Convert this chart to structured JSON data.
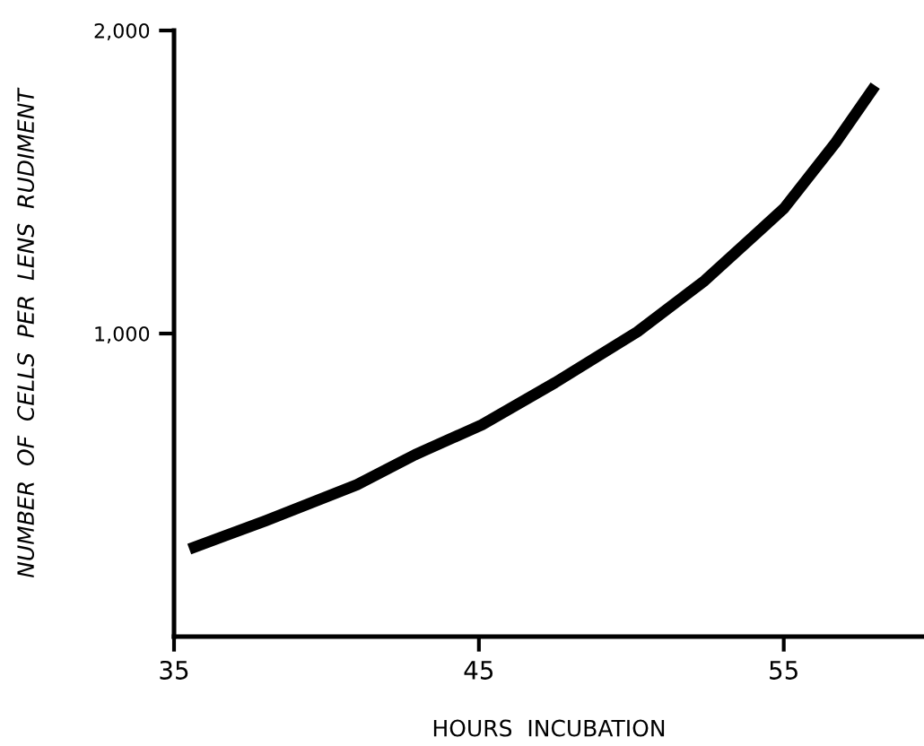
{
  "chart_data": {
    "type": "line",
    "xlabel": "HOURS  INCUBATION",
    "ylabel": "NUMBER  OF  CELLS  PER  LENS  RUDIMENT",
    "x": [
      35.5,
      38.0,
      41.0,
      42.9,
      45.1,
      47.5,
      50.2,
      52.4,
      55.0,
      56.7,
      58.0
    ],
    "series": [
      {
        "color": "#000000",
        "values": [
          289,
          382,
          501,
          600,
          699,
          838,
          1006,
          1174,
          1412,
          1630,
          1818
        ]
      }
    ],
    "xlim": [
      35,
      59.6
    ],
    "ylim": [
      0,
      2000
    ],
    "xticks": [
      35,
      45,
      55
    ],
    "yticks": [
      {
        "value": 1000,
        "label": "1,000"
      },
      {
        "value": 2000,
        "label": "2,000"
      }
    ],
    "grid": false,
    "legend": false,
    "line_style": "solid",
    "marker": "none"
  }
}
